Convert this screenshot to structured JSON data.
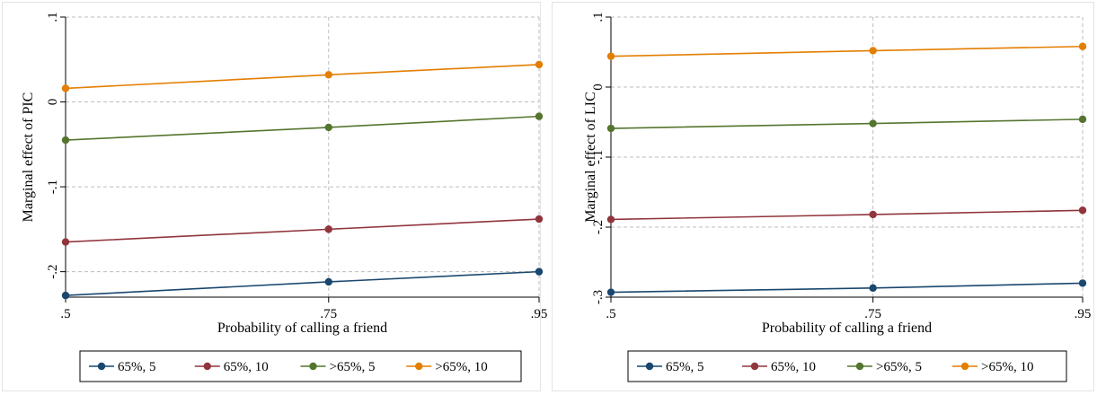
{
  "chart_data": [
    {
      "type": "line",
      "title": "",
      "xlabel": "Probability of calling a friend",
      "ylabel": "Marginal effect of PIC",
      "x": [
        0.5,
        0.75,
        0.95
      ],
      "x_tick_labels": [
        ".5",
        ".75",
        ".95"
      ],
      "ylim": [
        -0.23,
        0.1
      ],
      "y_ticks": [
        0.1,
        0,
        -0.1,
        -0.2
      ],
      "y_tick_labels": [
        ".1",
        "0",
        "-.1",
        "-.2"
      ],
      "grid": true,
      "legend_position": "bottom",
      "series": [
        {
          "name": "65%, 5",
          "color": "#1a476f",
          "values": [
            -0.228,
            -0.212,
            -0.2
          ]
        },
        {
          "name": "65%, 10",
          "color": "#90353b",
          "values": [
            -0.165,
            -0.15,
            -0.138
          ]
        },
        {
          "name": ">65%, 5",
          "color": "#55752f",
          "values": [
            -0.045,
            -0.03,
            -0.017
          ]
        },
        {
          "name": ">65%, 10",
          "color": "#e37e00",
          "values": [
            0.016,
            0.032,
            0.044
          ]
        }
      ]
    },
    {
      "type": "line",
      "title": "",
      "xlabel": "Probability of calling a friend",
      "ylabel": "Marginal effect of LIC",
      "x": [
        0.5,
        0.75,
        0.95
      ],
      "x_tick_labels": [
        ".5",
        ".75",
        ".95"
      ],
      "ylim": [
        -0.3,
        0.1
      ],
      "y_ticks": [
        0.1,
        0,
        -0.1,
        -0.2,
        -0.3
      ],
      "y_tick_labels": [
        ".1",
        "0",
        "-.1",
        "-.2",
        "-.3"
      ],
      "grid": true,
      "legend_position": "bottom",
      "series": [
        {
          "name": "65%, 5",
          "color": "#1a476f",
          "values": [
            -0.293,
            -0.287,
            -0.28
          ]
        },
        {
          "name": "65%, 10",
          "color": "#90353b",
          "values": [
            -0.189,
            -0.182,
            -0.176
          ]
        },
        {
          "name": ">65%, 5",
          "color": "#55752f",
          "values": [
            -0.059,
            -0.052,
            -0.046
          ]
        },
        {
          "name": ">65%, 10",
          "color": "#e37e00",
          "values": [
            0.044,
            0.052,
            0.058
          ]
        }
      ]
    }
  ]
}
